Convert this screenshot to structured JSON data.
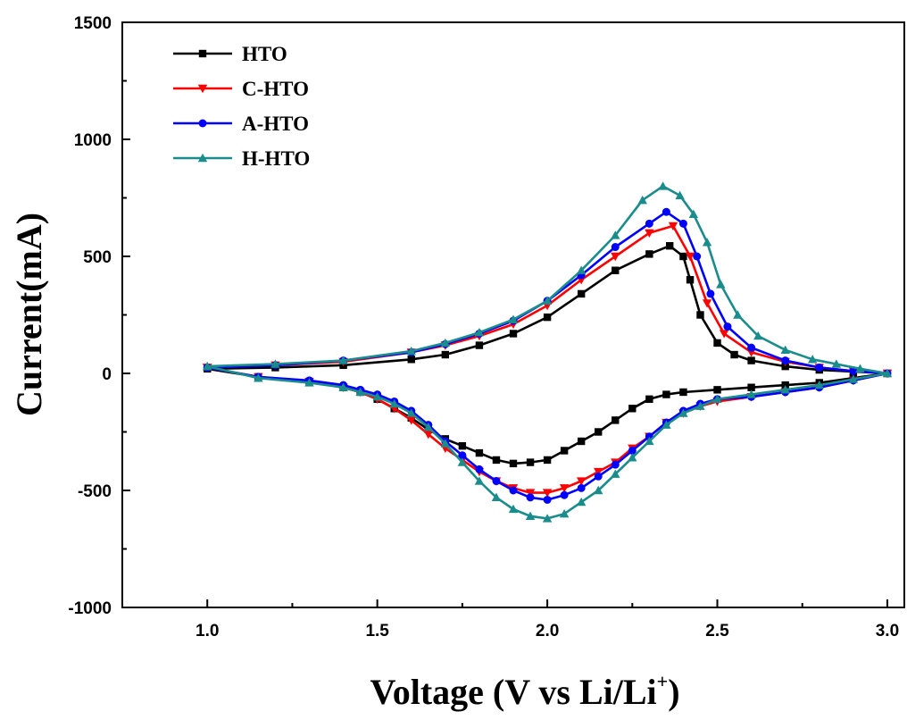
{
  "chart_data": {
    "type": "line",
    "xlabel": "Voltage (V vs Li/Li",
    "xlabel_sup": "+",
    "xlabel_end": ")",
    "ylabel": "Current(mA)",
    "xlim": [
      0.75,
      3.05
    ],
    "ylim": [
      -1000,
      1500
    ],
    "xticks": [
      1.0,
      1.5,
      2.0,
      2.5,
      3.0
    ],
    "xtick_labels": [
      "1.0",
      "1.5",
      "2.0",
      "2.5",
      "3.0"
    ],
    "yticks": [
      -1000,
      -500,
      0,
      500,
      1000,
      1500
    ],
    "ytick_labels": [
      "-1000",
      "-500",
      "0",
      "500",
      "1000",
      "1500"
    ],
    "grid": false,
    "legend_position": "top-left",
    "series": [
      {
        "name": "HTO",
        "color": "#000000",
        "marker": "square",
        "x": [
          1.0,
          1.2,
          1.4,
          1.6,
          1.7,
          1.8,
          1.9,
          2.0,
          2.1,
          2.2,
          2.3,
          2.36,
          2.4,
          2.42,
          2.45,
          2.5,
          2.55,
          2.6,
          2.7,
          2.8,
          2.9,
          3.0,
          2.9,
          2.8,
          2.7,
          2.6,
          2.5,
          2.4,
          2.35,
          2.3,
          2.25,
          2.2,
          2.15,
          2.1,
          2.05,
          2.0,
          1.95,
          1.9,
          1.85,
          1.8,
          1.75,
          1.7,
          1.65,
          1.6,
          1.55,
          1.5,
          1.45,
          1.4,
          1.3,
          1.15,
          1.0
        ],
        "y": [
          20,
          25,
          35,
          60,
          80,
          120,
          170,
          240,
          340,
          440,
          510,
          545,
          500,
          400,
          250,
          130,
          80,
          55,
          30,
          15,
          8,
          0,
          -20,
          -40,
          -50,
          -60,
          -70,
          -80,
          -90,
          -110,
          -150,
          -200,
          -250,
          -290,
          -330,
          -370,
          -380,
          -385,
          -370,
          -340,
          -310,
          -280,
          -240,
          -190,
          -150,
          -110,
          -80,
          -60,
          -35,
          -15,
          20
        ]
      },
      {
        "name": "C-HTO",
        "color": "#ff0000",
        "marker": "triangle-down",
        "x": [
          1.0,
          1.2,
          1.4,
          1.6,
          1.7,
          1.8,
          1.9,
          2.0,
          2.1,
          2.2,
          2.3,
          2.37,
          2.42,
          2.47,
          2.52,
          2.6,
          2.7,
          2.8,
          2.9,
          3.0,
          2.9,
          2.8,
          2.7,
          2.6,
          2.5,
          2.45,
          2.4,
          2.35,
          2.3,
          2.25,
          2.2,
          2.15,
          2.1,
          2.05,
          2.0,
          1.95,
          1.9,
          1.85,
          1.8,
          1.75,
          1.7,
          1.65,
          1.6,
          1.55,
          1.5,
          1.45,
          1.4,
          1.3,
          1.15,
          1.0
        ],
        "y": [
          25,
          35,
          50,
          90,
          120,
          160,
          210,
          290,
          400,
          500,
          600,
          630,
          500,
          300,
          170,
          90,
          50,
          25,
          10,
          0,
          -30,
          -60,
          -80,
          -100,
          -120,
          -140,
          -170,
          -210,
          -270,
          -320,
          -380,
          -420,
          -460,
          -490,
          -510,
          -510,
          -490,
          -460,
          -420,
          -370,
          -320,
          -260,
          -200,
          -150,
          -110,
          -80,
          -60,
          -35,
          -15,
          25
        ]
      },
      {
        "name": "A-HTO",
        "color": "#0000ff",
        "marker": "circle",
        "x": [
          1.0,
          1.2,
          1.4,
          1.6,
          1.7,
          1.8,
          1.9,
          2.0,
          2.1,
          2.2,
          2.3,
          2.35,
          2.4,
          2.44,
          2.48,
          2.53,
          2.6,
          2.7,
          2.8,
          2.9,
          3.0,
          2.9,
          2.8,
          2.7,
          2.6,
          2.5,
          2.45,
          2.4,
          2.35,
          2.3,
          2.25,
          2.2,
          2.15,
          2.1,
          2.05,
          2.0,
          1.95,
          1.9,
          1.85,
          1.8,
          1.75,
          1.7,
          1.65,
          1.6,
          1.55,
          1.5,
          1.45,
          1.4,
          1.3,
          1.15,
          1.0
        ],
        "y": [
          25,
          35,
          55,
          90,
          125,
          170,
          225,
          310,
          420,
          540,
          640,
          690,
          640,
          500,
          340,
          200,
          110,
          55,
          25,
          10,
          0,
          -30,
          -60,
          -80,
          -100,
          -110,
          -130,
          -160,
          -210,
          -270,
          -330,
          -390,
          -440,
          -490,
          -520,
          -540,
          -530,
          -500,
          -460,
          -410,
          -350,
          -290,
          -220,
          -160,
          -120,
          -90,
          -70,
          -50,
          -30,
          -15,
          25
        ]
      },
      {
        "name": "H-HTO",
        "color": "#1a8c8c",
        "marker": "triangle-up",
        "x": [
          1.0,
          1.2,
          1.4,
          1.6,
          1.7,
          1.8,
          1.9,
          2.0,
          2.1,
          2.2,
          2.28,
          2.34,
          2.39,
          2.43,
          2.47,
          2.51,
          2.56,
          2.62,
          2.7,
          2.78,
          2.85,
          2.92,
          3.0,
          2.9,
          2.8,
          2.7,
          2.6,
          2.5,
          2.45,
          2.4,
          2.35,
          2.3,
          2.25,
          2.2,
          2.15,
          2.1,
          2.05,
          2.0,
          1.95,
          1.9,
          1.85,
          1.8,
          1.75,
          1.7,
          1.65,
          1.6,
          1.55,
          1.5,
          1.45,
          1.4,
          1.3,
          1.15,
          1.0
        ],
        "y": [
          30,
          40,
          55,
          95,
          130,
          175,
          230,
          310,
          440,
          590,
          740,
          800,
          760,
          680,
          560,
          380,
          250,
          160,
          100,
          60,
          40,
          20,
          0,
          -25,
          -50,
          -70,
          -90,
          -110,
          -140,
          -170,
          -220,
          -290,
          -360,
          -430,
          -500,
          -550,
          -600,
          -620,
          -610,
          -580,
          -530,
          -460,
          -380,
          -300,
          -230,
          -170,
          -130,
          -100,
          -80,
          -60,
          -40,
          -20,
          30
        ]
      }
    ]
  }
}
